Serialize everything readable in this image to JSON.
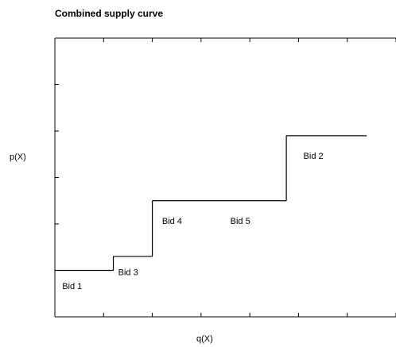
{
  "chart_data": {
    "type": "line",
    "step": true,
    "title": "Combined supply curve",
    "xlabel": "q(X)",
    "ylabel": "p(X)",
    "xlim": [
      0,
      7
    ],
    "ylim": [
      0,
      6
    ],
    "grid": false,
    "x_ticks": [
      0,
      1,
      2,
      3,
      4,
      5,
      6,
      7
    ],
    "y_ticks": [
      0,
      1,
      2,
      3,
      4,
      5,
      6
    ],
    "step_points": [
      {
        "x": 0,
        "y": 1
      },
      {
        "x": 1.2,
        "y": 1
      },
      {
        "x": 1.2,
        "y": 1.3
      },
      {
        "x": 2,
        "y": 1.3
      },
      {
        "x": 2,
        "y": 2.5
      },
      {
        "x": 4.75,
        "y": 2.5
      },
      {
        "x": 4.75,
        "y": 3.9
      },
      {
        "x": 6.4,
        "y": 3.9
      }
    ],
    "annotations": [
      {
        "text": "Bid 1",
        "x": 0.15,
        "y": 0.6
      },
      {
        "text": "Bid 3",
        "x": 1.3,
        "y": 0.9
      },
      {
        "text": "Bid 4",
        "x": 2.2,
        "y": 2.0
      },
      {
        "text": "Bid 5",
        "x": 3.6,
        "y": 2.0
      },
      {
        "text": "Bid 2",
        "x": 5.1,
        "y": 3.4
      }
    ]
  }
}
